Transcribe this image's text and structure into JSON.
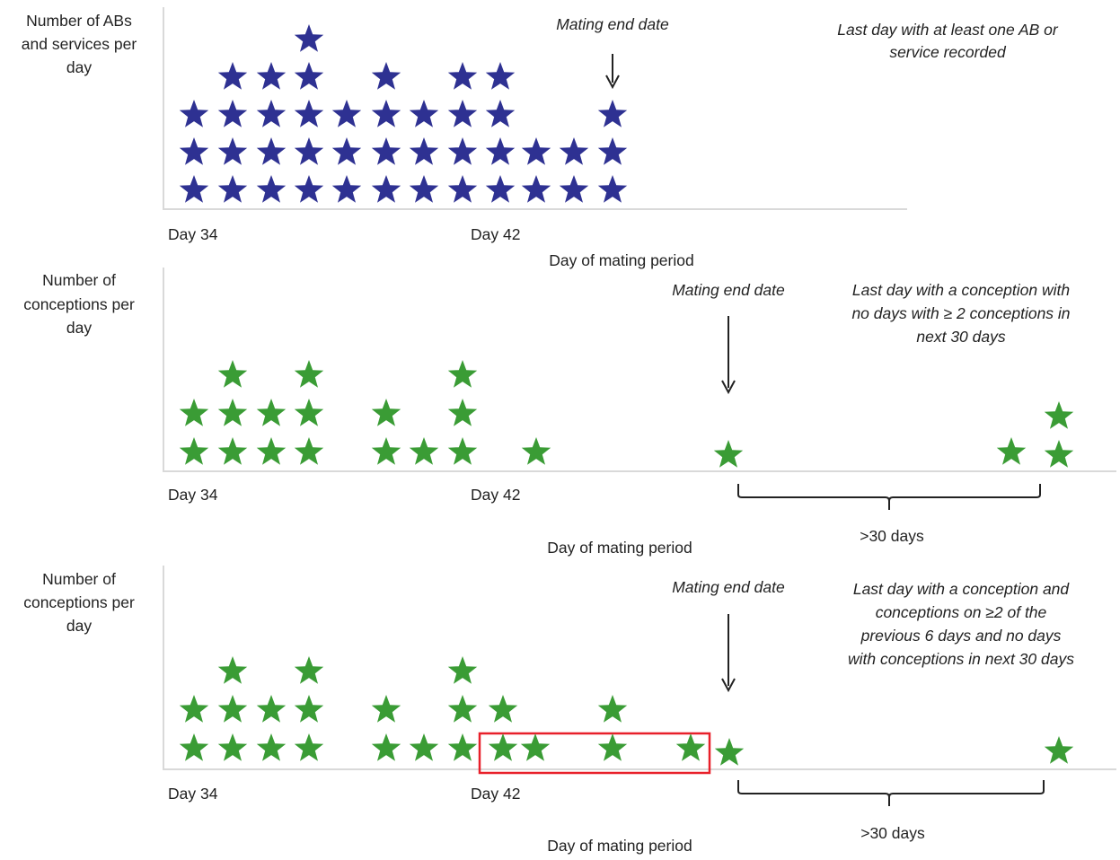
{
  "colors": {
    "blue_star": "#2E3192",
    "green_star": "#3A9C35",
    "axis": "#d9d9d9",
    "highlight_box": "#e8202a",
    "text": "#222222"
  },
  "icons": {
    "star": "star-icon"
  },
  "panels": [
    {
      "id": "abs-services",
      "ylabel": [
        "Number of ABs",
        "and services per",
        "day"
      ],
      "tick_left": "Day 34",
      "tick_right": "Day 42",
      "xlabel": "Day of mating period",
      "end_label": "Mating end date",
      "note": [
        "Last day with  at least one AB or",
        "service recorded"
      ],
      "duration": "",
      "star_color": "blue",
      "counts": [
        3,
        4,
        4,
        5,
        3,
        4,
        3,
        4,
        4,
        2,
        2,
        3
      ]
    },
    {
      "id": "conceptions-a",
      "ylabel": [
        "Number of",
        "conceptions per",
        "day"
      ],
      "tick_left": "Day 34",
      "tick_right": "Day 42",
      "xlabel": "Day of mating period",
      "end_label": "Mating end date",
      "note": [
        "Last day with  a conception with",
        "no days with  ≥ 2 conceptions in",
        "next 30 days"
      ],
      "duration": ">30 days",
      "star_color": "green",
      "counts": [
        2,
        3,
        2,
        3,
        0,
        2,
        1,
        3,
        0,
        1,
        1,
        1,
        2
      ]
    },
    {
      "id": "conceptions-b",
      "ylabel": [
        "Number of",
        "conceptions per",
        "day"
      ],
      "tick_left": "Day 34",
      "tick_right": "Day 42",
      "xlabel": "Day of mating period",
      "end_label": "Mating end date",
      "note": [
        "Last day with  a conception and",
        "conceptions on ≥2 of the",
        "previous 6 days and no days",
        "with  conceptions in next 30 days"
      ],
      "duration": ">30 days",
      "star_color": "green",
      "counts": [
        2,
        3,
        2,
        3,
        0,
        2,
        1,
        3,
        2,
        1,
        2,
        1,
        1,
        1
      ]
    }
  ]
}
